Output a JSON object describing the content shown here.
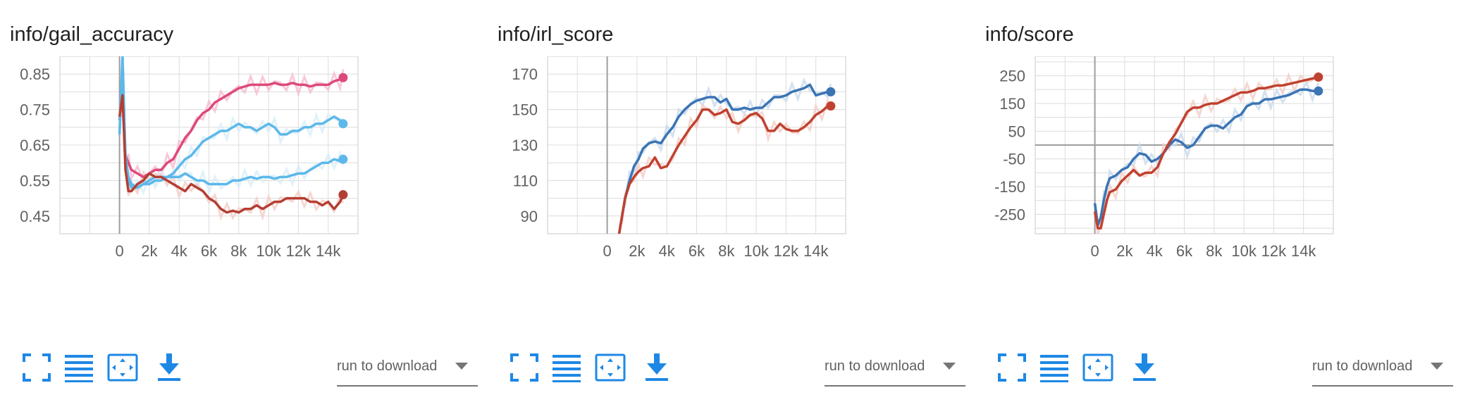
{
  "toolbar": {
    "fullscreen_icon": "fullscreen-icon",
    "data_table_icon": "list-icon",
    "fit_domain_icon": "fit-to-data-icon",
    "download_icon": "download-icon",
    "run_select_label": "run to download"
  },
  "colors": {
    "accent": "#2196f3",
    "grid": "#dcdcdc",
    "axis": "#9e9e9e"
  },
  "chart_data": [
    {
      "type": "line",
      "title": "info/gail_accuracy",
      "xlabel": "",
      "ylabel": "",
      "xlim": [
        -4000,
        16000
      ],
      "ylim": [
        0.4,
        0.9
      ],
      "x_ticks": [
        0,
        2000,
        4000,
        6000,
        8000,
        10000,
        12000,
        14000
      ],
      "x_tick_labels": [
        "0",
        "2k",
        "4k",
        "6k",
        "8k",
        "10k",
        "12k",
        "14k"
      ],
      "y_ticks": [
        0.45,
        0.55,
        0.65,
        0.75,
        0.85
      ],
      "y_tick_labels": [
        "0.45",
        "0.55",
        "0.65",
        "0.75",
        "0.85"
      ],
      "grid": true,
      "series": [
        {
          "color": "#dc4a7a",
          "raw_color": "#f8bccd",
          "x": [
            0,
            200,
            400,
            600,
            800,
            1200,
            1600,
            2000,
            2400,
            2800,
            3200,
            3600,
            4000,
            4400,
            4800,
            5200,
            5600,
            6000,
            6400,
            6800,
            7200,
            7600,
            8000,
            8400,
            8800,
            9200,
            9600,
            10000,
            10400,
            10800,
            11200,
            11600,
            12000,
            12400,
            12800,
            13200,
            13600,
            14000,
            14400,
            14800,
            15000
          ],
          "y": [
            0.72,
            0.8,
            0.62,
            0.6,
            0.58,
            0.57,
            0.56,
            0.57,
            0.58,
            0.58,
            0.6,
            0.61,
            0.64,
            0.67,
            0.69,
            0.72,
            0.74,
            0.75,
            0.77,
            0.78,
            0.79,
            0.8,
            0.81,
            0.815,
            0.82,
            0.82,
            0.82,
            0.82,
            0.825,
            0.82,
            0.82,
            0.825,
            0.82,
            0.82,
            0.815,
            0.82,
            0.82,
            0.82,
            0.83,
            0.835,
            0.84
          ]
        },
        {
          "color": "#5cb8ea",
          "raw_color": "#d8eef9",
          "x": [
            0,
            200,
            400,
            600,
            800,
            1200,
            1600,
            2000,
            2400,
            2800,
            3200,
            3600,
            4000,
            4400,
            4800,
            5200,
            5600,
            6000,
            6400,
            6800,
            7200,
            7600,
            8000,
            8400,
            8800,
            9200,
            9600,
            10000,
            10400,
            10800,
            11200,
            11600,
            12000,
            12400,
            12800,
            13200,
            13600,
            14000,
            14400,
            14800,
            15000
          ],
          "y": [
            0.68,
            0.9,
            0.62,
            0.56,
            0.54,
            0.53,
            0.54,
            0.54,
            0.55,
            0.55,
            0.56,
            0.57,
            0.59,
            0.61,
            0.62,
            0.64,
            0.66,
            0.67,
            0.68,
            0.69,
            0.69,
            0.7,
            0.71,
            0.7,
            0.7,
            0.69,
            0.7,
            0.71,
            0.7,
            0.68,
            0.68,
            0.69,
            0.69,
            0.7,
            0.7,
            0.71,
            0.71,
            0.72,
            0.73,
            0.72,
            0.71
          ]
        },
        {
          "color": "#5cb8ea",
          "raw_color": "#d8eef9",
          "x": [
            0,
            200,
            400,
            600,
            800,
            1200,
            1600,
            2000,
            2400,
            2800,
            3200,
            3600,
            4000,
            4400,
            4800,
            5200,
            5600,
            6000,
            6400,
            6800,
            7200,
            7600,
            8000,
            8400,
            8800,
            9200,
            9600,
            10000,
            10400,
            10800,
            11200,
            11600,
            12000,
            12400,
            12800,
            13200,
            13600,
            14000,
            14400,
            14800,
            15000
          ],
          "y": [
            0.68,
            0.9,
            0.6,
            0.55,
            0.53,
            0.53,
            0.54,
            0.55,
            0.56,
            0.56,
            0.56,
            0.56,
            0.56,
            0.57,
            0.56,
            0.55,
            0.55,
            0.54,
            0.54,
            0.54,
            0.54,
            0.55,
            0.55,
            0.555,
            0.56,
            0.555,
            0.56,
            0.56,
            0.555,
            0.56,
            0.56,
            0.565,
            0.57,
            0.57,
            0.58,
            0.59,
            0.6,
            0.6,
            0.61,
            0.605,
            0.61
          ]
        },
        {
          "color": "#b43e33",
          "raw_color": "#f2cdc5",
          "x": [
            0,
            200,
            400,
            600,
            800,
            1200,
            1600,
            2000,
            2400,
            2800,
            3200,
            3600,
            4000,
            4400,
            4800,
            5200,
            5600,
            6000,
            6400,
            6800,
            7200,
            7600,
            8000,
            8400,
            8800,
            9200,
            9600,
            10000,
            10400,
            10800,
            11200,
            11600,
            12000,
            12400,
            12800,
            13200,
            13600,
            14000,
            14400,
            14800,
            15000
          ],
          "y": [
            0.73,
            0.79,
            0.58,
            0.52,
            0.52,
            0.54,
            0.55,
            0.57,
            0.56,
            0.56,
            0.55,
            0.54,
            0.53,
            0.52,
            0.54,
            0.53,
            0.52,
            0.5,
            0.49,
            0.47,
            0.46,
            0.465,
            0.46,
            0.47,
            0.47,
            0.48,
            0.47,
            0.48,
            0.49,
            0.49,
            0.5,
            0.5,
            0.5,
            0.5,
            0.49,
            0.49,
            0.48,
            0.49,
            0.47,
            0.49,
            0.51
          ]
        }
      ]
    },
    {
      "type": "line",
      "title": "info/irl_score",
      "xlabel": "",
      "ylabel": "",
      "xlim": [
        -4000,
        16000
      ],
      "ylim": [
        80,
        180
      ],
      "x_ticks": [
        0,
        2000,
        4000,
        6000,
        8000,
        10000,
        12000,
        14000
      ],
      "x_tick_labels": [
        "0",
        "2k",
        "4k",
        "6k",
        "8k",
        "10k",
        "12k",
        "14k"
      ],
      "y_ticks": [
        90,
        110,
        130,
        150,
        170
      ],
      "y_tick_labels": [
        "90",
        "110",
        "130",
        "150",
        "170"
      ],
      "grid": true,
      "series": [
        {
          "color": "#3a74b4",
          "raw_color": "#c9d9ec",
          "x": [
            800,
            1000,
            1200,
            1500,
            1800,
            2100,
            2400,
            2800,
            3200,
            3600,
            4000,
            4400,
            4800,
            5200,
            5600,
            6000,
            6400,
            6800,
            7200,
            7600,
            8000,
            8400,
            8800,
            9200,
            9600,
            10000,
            10400,
            10800,
            11200,
            11600,
            12000,
            12400,
            12800,
            13200,
            13600,
            14000,
            14400,
            14800,
            15000
          ],
          "y": [
            80,
            90,
            100,
            110,
            118,
            122,
            128,
            131,
            132,
            131,
            136,
            140,
            146,
            150,
            153,
            155,
            156,
            157,
            157,
            154,
            156,
            150,
            150,
            151,
            150,
            151,
            151,
            154,
            157,
            157,
            158,
            160,
            161,
            162,
            164,
            158,
            159,
            160,
            160
          ]
        },
        {
          "color": "#c0412f",
          "raw_color": "#f2cdc5",
          "x": [
            800,
            1000,
            1200,
            1500,
            1800,
            2100,
            2400,
            2800,
            3200,
            3600,
            4000,
            4400,
            4800,
            5200,
            5600,
            6000,
            6400,
            6800,
            7200,
            7600,
            8000,
            8400,
            8800,
            9200,
            9600,
            10000,
            10400,
            10800,
            11200,
            11600,
            12000,
            12400,
            12800,
            13200,
            13600,
            14000,
            14400,
            14800,
            15000
          ],
          "y": [
            80,
            90,
            100,
            108,
            112,
            115,
            117,
            118,
            123,
            117,
            118,
            124,
            130,
            135,
            140,
            144,
            150,
            150,
            147,
            148,
            150,
            143,
            142,
            144,
            147,
            148,
            145,
            138,
            138,
            142,
            139,
            138,
            138,
            140,
            143,
            147,
            149,
            152,
            152
          ]
        }
      ]
    },
    {
      "type": "line",
      "title": "info/score",
      "xlabel": "",
      "ylabel": "",
      "xlim": [
        -4000,
        16000
      ],
      "ylim": [
        -320,
        320
      ],
      "x_ticks": [
        0,
        2000,
        4000,
        6000,
        8000,
        10000,
        12000,
        14000
      ],
      "x_tick_labels": [
        "0",
        "2k",
        "4k",
        "6k",
        "8k",
        "10k",
        "12k",
        "14k"
      ],
      "y_ticks": [
        -250,
        -150,
        -50,
        50,
        150,
        250
      ],
      "y_tick_labels": [
        "-250",
        "-150",
        "-50",
        "50",
        "150",
        "250"
      ],
      "grid": true,
      "series": [
        {
          "color": "#3a74b4",
          "raw_color": "#c9d9ec",
          "x": [
            0,
            200,
            400,
            600,
            800,
            1000,
            1400,
            1800,
            2200,
            2600,
            3000,
            3400,
            3800,
            4200,
            4600,
            5000,
            5400,
            5800,
            6200,
            6600,
            7000,
            7400,
            7800,
            8200,
            8600,
            9000,
            9400,
            9800,
            10200,
            10600,
            11000,
            11400,
            11800,
            12200,
            12600,
            13000,
            13400,
            13800,
            14200,
            14600,
            15000
          ],
          "y": [
            -210,
            -290,
            -260,
            -200,
            -150,
            -120,
            -110,
            -90,
            -80,
            -50,
            -30,
            -35,
            -60,
            -50,
            -30,
            0,
            20,
            10,
            -10,
            0,
            30,
            60,
            70,
            70,
            60,
            80,
            100,
            110,
            140,
            150,
            150,
            165,
            165,
            170,
            175,
            180,
            190,
            200,
            200,
            195,
            195
          ]
        },
        {
          "color": "#c0412f",
          "raw_color": "#f2cdc5",
          "x": [
            0,
            200,
            400,
            600,
            800,
            1000,
            1400,
            1800,
            2200,
            2600,
            3000,
            3400,
            3800,
            4200,
            4600,
            5000,
            5400,
            5800,
            6200,
            6600,
            7000,
            7400,
            7800,
            8200,
            8600,
            9000,
            9400,
            9800,
            10200,
            10600,
            11000,
            11400,
            11800,
            12200,
            12600,
            13000,
            13400,
            13800,
            14200,
            14600,
            15000
          ],
          "y": [
            -240,
            -300,
            -300,
            -250,
            -200,
            -170,
            -160,
            -130,
            -110,
            -90,
            -110,
            -100,
            -100,
            -80,
            -30,
            10,
            40,
            80,
            120,
            135,
            135,
            145,
            150,
            150,
            160,
            170,
            180,
            190,
            190,
            195,
            205,
            205,
            210,
            215,
            215,
            220,
            225,
            230,
            235,
            240,
            245
          ]
        }
      ]
    }
  ]
}
